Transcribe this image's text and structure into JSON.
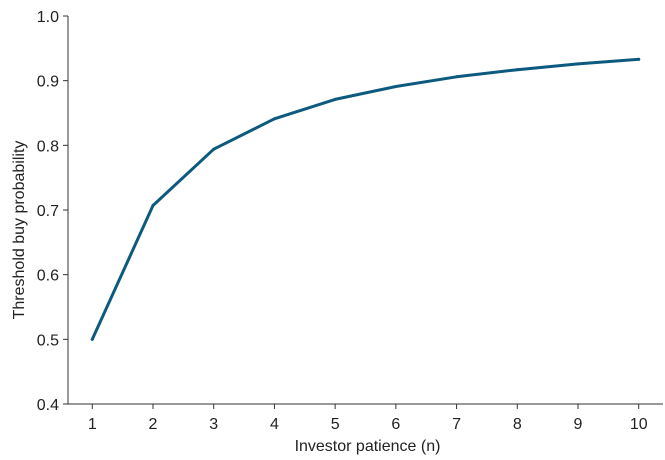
{
  "chart_data": {
    "type": "line",
    "title": "",
    "xlabel": "Investor patience (n)",
    "ylabel": "Threshold buy probability",
    "x": [
      1,
      2,
      3,
      4,
      5,
      6,
      7,
      8,
      9,
      10
    ],
    "series": [
      {
        "values": [
          0.5,
          0.707,
          0.794,
          0.841,
          0.871,
          0.891,
          0.906,
          0.917,
          0.926,
          0.933
        ],
        "color": "#0d5a7f"
      }
    ],
    "xlim": [
      0.6,
      10.4
    ],
    "ylim": [
      0.4,
      1.0
    ],
    "xticks": [
      "1",
      "2",
      "3",
      "4",
      "5",
      "6",
      "7",
      "8",
      "9",
      "10"
    ],
    "yticks": [
      "0.4",
      "0.5",
      "0.6",
      "0.7",
      "0.8",
      "0.9",
      "1.0"
    ],
    "grid": false,
    "legend": "none"
  }
}
